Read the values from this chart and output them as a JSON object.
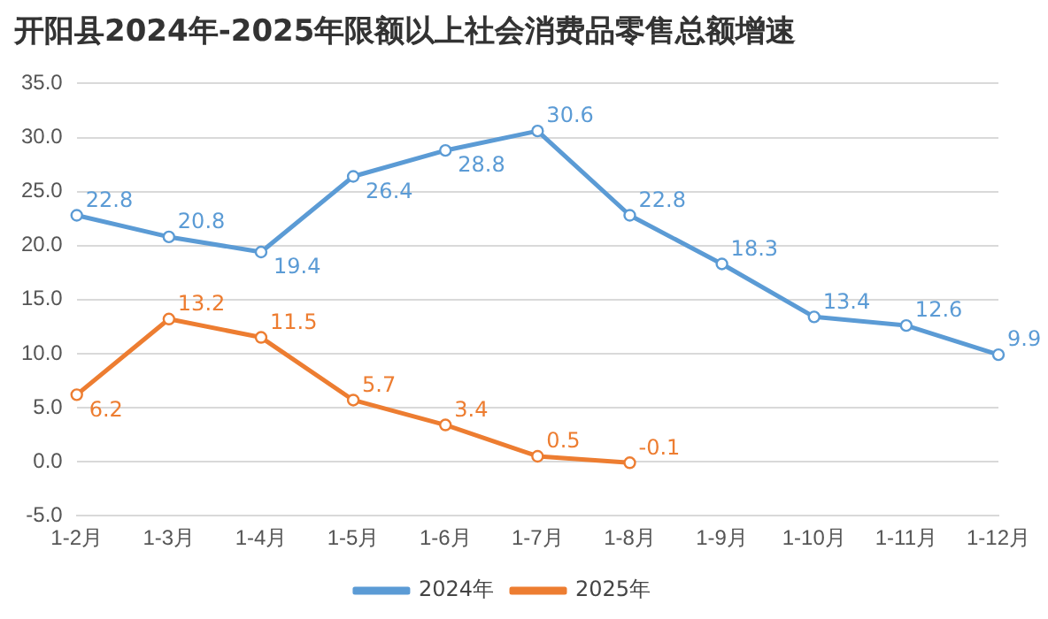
{
  "chart_data": {
    "type": "line",
    "title": "开阳县2024年-2025年限额以上社会消费品零售总额增速",
    "categories": [
      "1-2月",
      "1-3月",
      "1-4月",
      "1-5月",
      "1-6月",
      "1-7月",
      "1-8月",
      "1-9月",
      "1-10月",
      "1-11月",
      "1-12月"
    ],
    "series": [
      {
        "name": "2024年",
        "color": "#5b9bd5",
        "values": [
          22.8,
          20.8,
          19.4,
          26.4,
          28.8,
          30.6,
          22.8,
          18.3,
          13.4,
          12.6,
          9.9
        ]
      },
      {
        "name": "2025年",
        "color": "#ed7d31",
        "values": [
          6.2,
          13.2,
          11.5,
          5.7,
          3.4,
          0.5,
          -0.1,
          null,
          null,
          null,
          null
        ]
      }
    ],
    "ylim": [
      -5,
      35
    ],
    "yticks": [
      {
        "value": -5,
        "label": "-5.0"
      },
      {
        "value": 0,
        "label": "0.0"
      },
      {
        "value": 5,
        "label": "5.0"
      },
      {
        "value": 10,
        "label": "10.0"
      },
      {
        "value": 15,
        "label": "15.0"
      },
      {
        "value": 20,
        "label": "20.0"
      },
      {
        "value": 25,
        "label": "25.0"
      },
      {
        "value": 30,
        "label": "30.0"
      },
      {
        "value": 35,
        "label": "35.0"
      }
    ],
    "grid": "y",
    "legend": "bottom",
    "marker": "circle",
    "line_style": "solid",
    "data_labels": true
  }
}
